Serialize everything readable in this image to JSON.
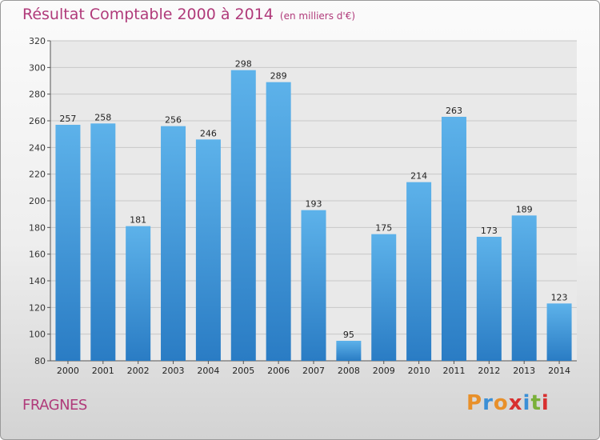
{
  "chart_data": {
    "type": "bar",
    "title": "Résultat Comptable 2000 à 2014",
    "unit_note": "(en milliers d'€)",
    "categories": [
      "2000",
      "2001",
      "2002",
      "2003",
      "2004",
      "2005",
      "2006",
      "2007",
      "2008",
      "2009",
      "2010",
      "2011",
      "2012",
      "2013",
      "2014"
    ],
    "values": [
      257,
      258,
      181,
      256,
      246,
      298,
      289,
      193,
      95,
      175,
      214,
      263,
      173,
      189,
      123
    ],
    "ylim": [
      80,
      320
    ],
    "yticks": [
      80,
      100,
      120,
      140,
      160,
      180,
      200,
      220,
      240,
      260,
      280,
      300,
      320
    ],
    "grid": true,
    "bar_color": "#3a8fd6",
    "bar_color_light": "#5db2ea"
  },
  "footer": {
    "city": "FRAGNES",
    "logo": "Proxiti"
  },
  "colors": {
    "title": "#b03a7a",
    "logo_letters": [
      "#e8902a",
      "#3a8fd6",
      "#e8902a",
      "#d83030",
      "#3a8fd6",
      "#7ab03a",
      "#d83030"
    ]
  }
}
